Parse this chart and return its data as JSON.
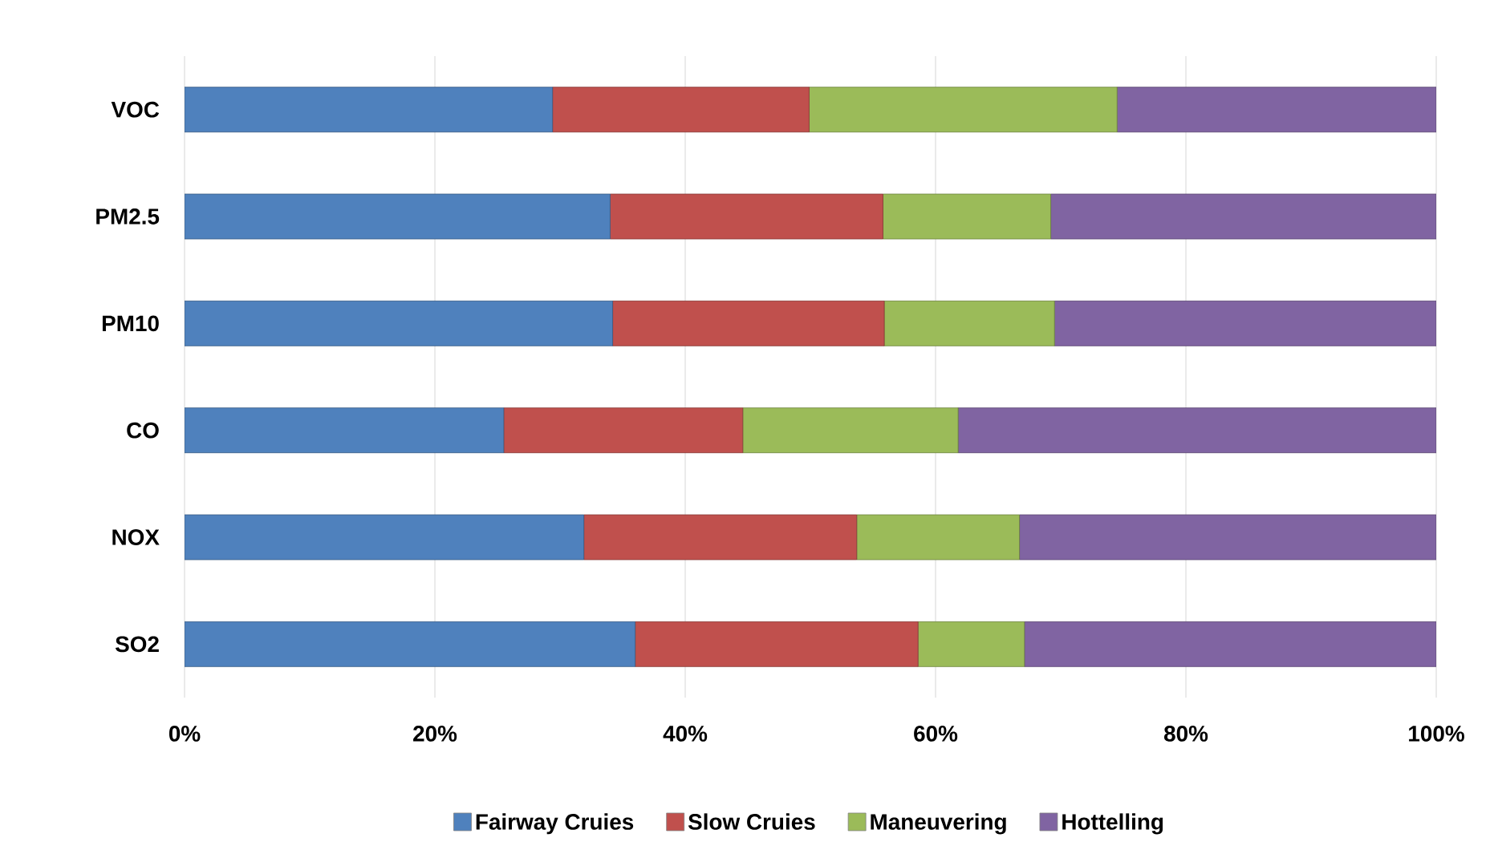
{
  "chart_data": {
    "type": "bar",
    "orientation": "horizontal",
    "stacked": true,
    "categories": [
      "VOC",
      "PM2.5",
      "PM10",
      "CO",
      "NOX",
      "SO2"
    ],
    "series": [
      {
        "name": "Fairway Cruies",
        "color": "#4f81bd",
        "values": [
          29.4,
          34.0,
          34.2,
          25.5,
          31.9,
          36.0
        ]
      },
      {
        "name": "Slow Cruies",
        "color": "#c0504d",
        "values": [
          20.5,
          21.8,
          21.7,
          19.1,
          21.8,
          22.6
        ]
      },
      {
        "name": "Maneuvering",
        "color": "#9bbb59",
        "values": [
          24.6,
          13.4,
          13.6,
          17.2,
          13.0,
          8.5
        ]
      },
      {
        "name": "Hottelling",
        "color": "#8064a2",
        "values": [
          25.5,
          30.8,
          30.5,
          38.2,
          33.3,
          32.9
        ]
      }
    ],
    "xlim": [
      0,
      100
    ],
    "xticks": [
      {
        "value": 0,
        "label": "0%"
      },
      {
        "value": 20,
        "label": "20%"
      },
      {
        "value": 40,
        "label": "40%"
      },
      {
        "value": 60,
        "label": "60%"
      },
      {
        "value": 80,
        "label": "80%"
      },
      {
        "value": 100,
        "label": "100%"
      }
    ],
    "grid": "x",
    "legend": "bottom"
  }
}
